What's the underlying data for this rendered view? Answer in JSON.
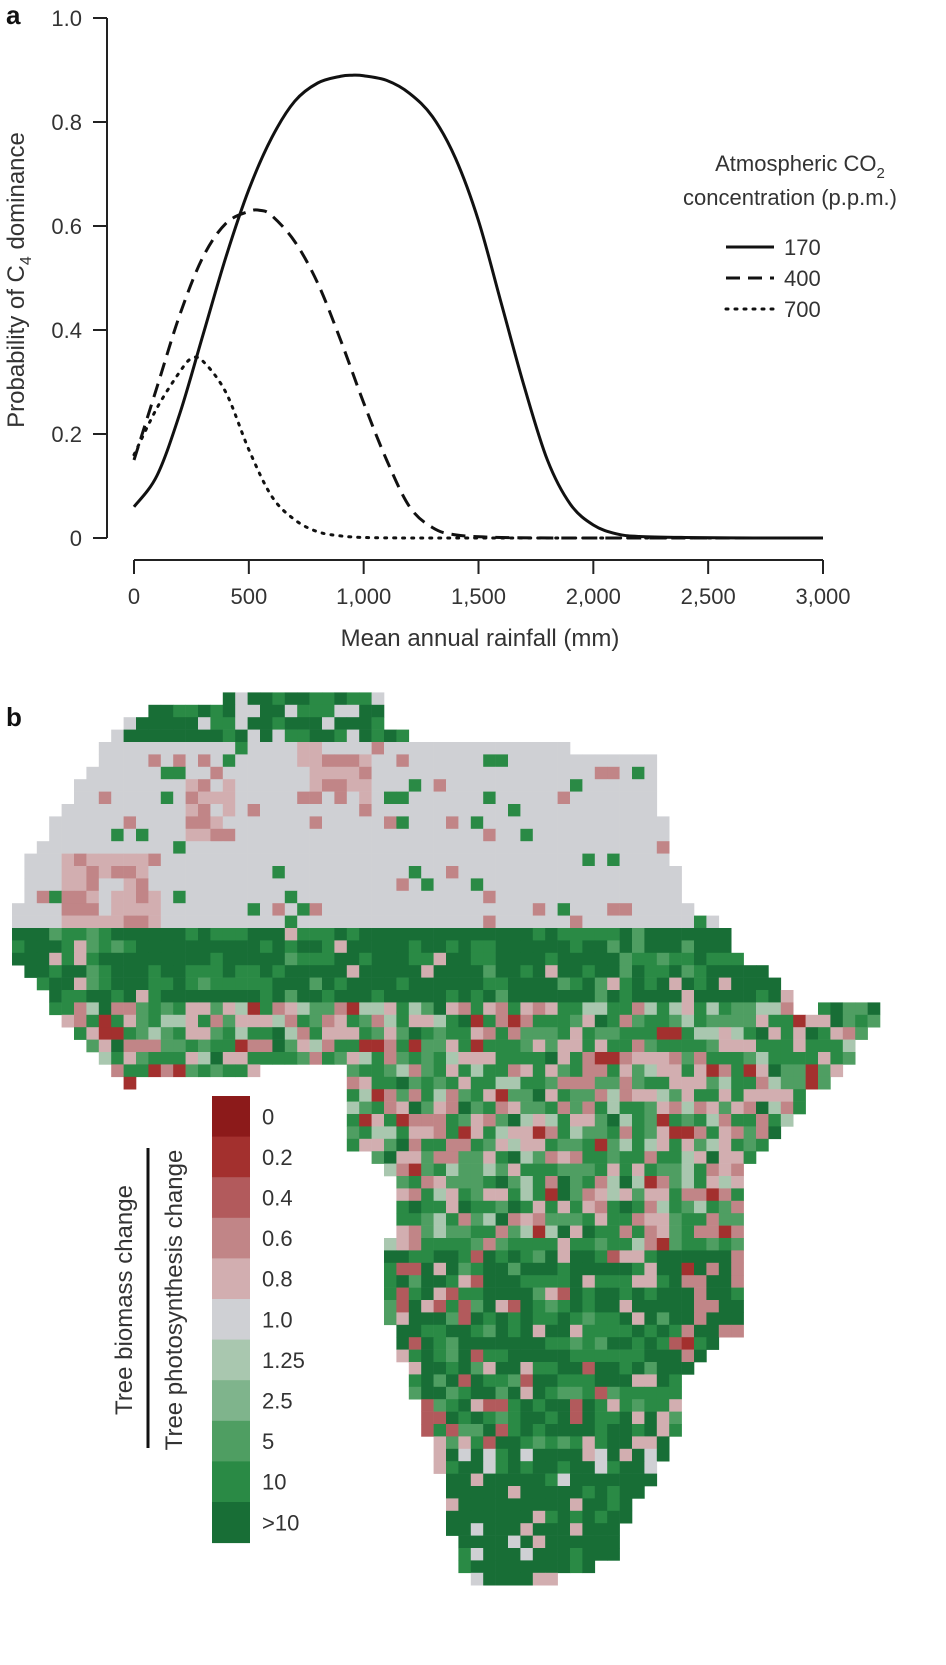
{
  "panels": {
    "a": "a",
    "b": "b"
  },
  "chart_data": [
    {
      "type": "line",
      "panel": "a",
      "xlabel": "Mean annual rainfall (mm)",
      "ylabel_parts": {
        "pre": "Probability of C",
        "sub": "4",
        "post": " dominance"
      },
      "xlim": [
        0,
        3000
      ],
      "ylim": [
        0,
        1.0
      ],
      "x_ticks": [
        0,
        500,
        1000,
        1500,
        2000,
        2500,
        3000
      ],
      "x_tick_labels": [
        "0",
        "500",
        "1,000",
        "1,500",
        "2,000",
        "2,500",
        "3,000"
      ],
      "y_ticks": [
        0,
        0.2,
        0.4,
        0.6,
        0.8,
        1.0
      ],
      "y_tick_labels": [
        "0",
        "0.2",
        "0.4",
        "0.6",
        "0.8",
        "1.0"
      ],
      "legend_title": {
        "line1_pre": "Atmospheric CO",
        "line1_sub": "2",
        "line2": "concentration (p.p.m.)"
      },
      "legend_position": "right",
      "series": [
        {
          "name": "170",
          "style": "solid",
          "x": [
            0,
            100,
            200,
            300,
            400,
            500,
            600,
            700,
            800,
            900,
            950,
            1000,
            1100,
            1200,
            1300,
            1400,
            1500,
            1600,
            1700,
            1800,
            1900,
            2000,
            2100,
            2200,
            2400,
            2700,
            3000
          ],
          "y": [
            0.06,
            0.12,
            0.24,
            0.39,
            0.54,
            0.67,
            0.77,
            0.84,
            0.875,
            0.888,
            0.89,
            0.889,
            0.88,
            0.855,
            0.81,
            0.73,
            0.61,
            0.45,
            0.29,
            0.15,
            0.065,
            0.025,
            0.008,
            0.003,
            0.001,
            0,
            0
          ]
        },
        {
          "name": "400",
          "style": "dashed",
          "x": [
            0,
            100,
            200,
            300,
            400,
            500,
            550,
            600,
            700,
            800,
            900,
            1000,
            1100,
            1200,
            1300,
            1400,
            1600,
            2000,
            3000
          ],
          "y": [
            0.15,
            0.29,
            0.43,
            0.54,
            0.605,
            0.628,
            0.63,
            0.62,
            0.57,
            0.49,
            0.38,
            0.26,
            0.15,
            0.06,
            0.02,
            0.006,
            0.001,
            0,
            0
          ]
        },
        {
          "name": "700",
          "style": "dotted",
          "x": [
            0,
            100,
            200,
            250,
            300,
            400,
            500,
            600,
            700,
            800,
            900,
            1000,
            1200,
            1500,
            2000,
            3000
          ],
          "y": [
            0.16,
            0.25,
            0.32,
            0.345,
            0.34,
            0.28,
            0.17,
            0.08,
            0.035,
            0.012,
            0.004,
            0.001,
            0,
            0,
            0,
            0
          ]
        }
      ]
    },
    {
      "type": "heatmap",
      "panel": "b",
      "colorbar_label_top": "Tree biomass change",
      "colorbar_label_bottom": "Tree photosynthesis change",
      "colorbar": [
        {
          "label": "0",
          "color": "#8c1a1a"
        },
        {
          "label": "0.2",
          "color": "#a3302e"
        },
        {
          "label": "0.4",
          "color": "#b25a5c"
        },
        {
          "label": "0.6",
          "color": "#c18587"
        },
        {
          "label": "0.8",
          "color": "#d2aeb0"
        },
        {
          "label": "1.0",
          "color": "#cfd0d4"
        },
        {
          "label": "1.25",
          "color": "#a9c7af"
        },
        {
          "label": "2.5",
          "color": "#7fb48c"
        },
        {
          "label": "5",
          "color": "#4f9e62"
        },
        {
          "label": "10",
          "color": "#2a8a45"
        },
        {
          "label": ">10",
          "color": "#186e36"
        }
      ]
    }
  ]
}
